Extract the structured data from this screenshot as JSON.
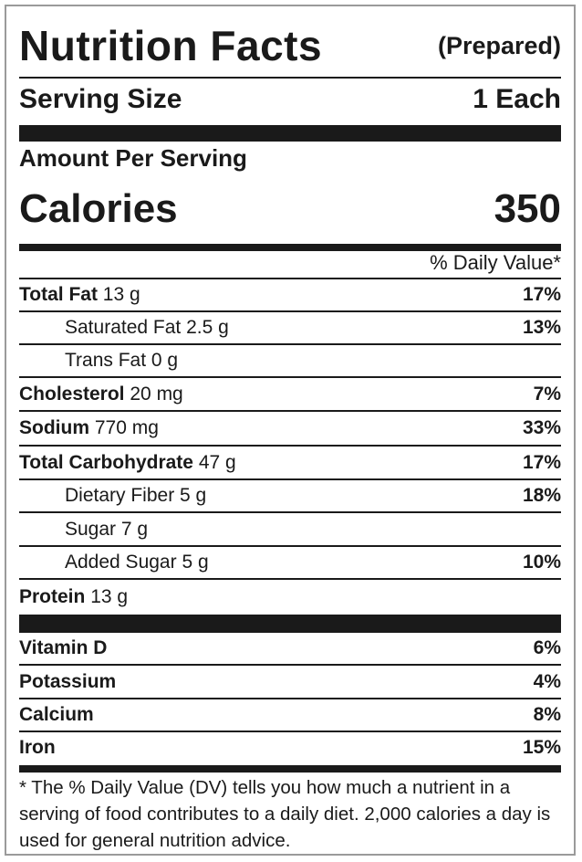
{
  "title": "Nutrition Facts",
  "subtitle": "(Prepared)",
  "serving": {
    "label": "Serving Size",
    "value": "1 Each"
  },
  "amount_per_serving": "Amount Per Serving",
  "calories": {
    "label": "Calories",
    "value": "350"
  },
  "dv_header": "% Daily Value*",
  "nutrients": [
    {
      "name": "Total Fat",
      "amount": "13 g",
      "dv": "17%"
    },
    {
      "name": "Saturated Fat",
      "amount": "2.5 g",
      "dv": "13%"
    },
    {
      "name": "Trans Fat",
      "amount": "0 g",
      "dv": ""
    },
    {
      "name": "Cholesterol",
      "amount": "20 mg",
      "dv": "7%"
    },
    {
      "name": "Sodium",
      "amount": "770 mg",
      "dv": "33%"
    },
    {
      "name": "Total Carbohydrate",
      "amount": "47 g",
      "dv": "17%"
    },
    {
      "name": "Dietary Fiber",
      "amount": "5 g",
      "dv": "18%"
    },
    {
      "name": "Sugar",
      "amount": "7 g",
      "dv": ""
    },
    {
      "name": "Added Sugar",
      "amount": "5 g",
      "dv": "10%"
    },
    {
      "name": "Protein",
      "amount": "13 g",
      "dv": ""
    }
  ],
  "vitamins": [
    {
      "name": "Vitamin D",
      "dv": "6%"
    },
    {
      "name": "Potassium",
      "dv": "4%"
    },
    {
      "name": "Calcium",
      "dv": "8%"
    },
    {
      "name": "Iron",
      "dv": "15%"
    }
  ],
  "footnote": "* The % Daily Value (DV) tells you how much a nutrient in a serving of food contributes to a daily diet. 2,000 calories a day is used for general nutrition advice."
}
